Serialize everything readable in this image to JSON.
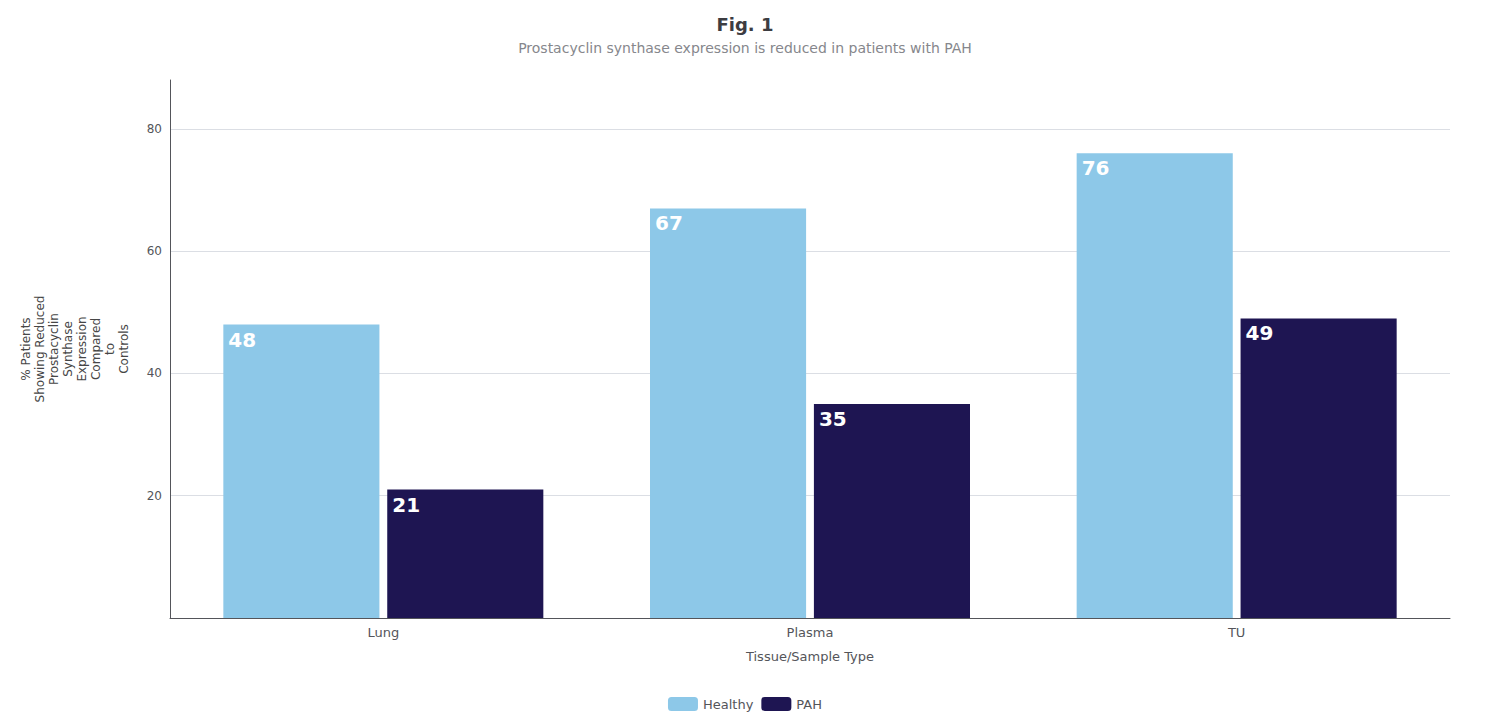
{
  "chart_data": {
    "type": "bar",
    "title": "Fig. 1",
    "subtitle": "Prostacyclin synthase expression is reduced in patients with PAH",
    "ylabel": "% Patients\nShowing Reduced\nProstacyclin\nSynthase\nExpression\nCompared\nto\nControls",
    "xlabel": "Tissue/Sample Type",
    "categories": [
      "Lung",
      "Plasma",
      "TU"
    ],
    "series": [
      {
        "name": "Healthy",
        "color": "#8DC8E8",
        "values": [
          48,
          67,
          76
        ]
      },
      {
        "name": "PAH",
        "color": "#1E1552",
        "values": [
          21,
          35,
          49
        ]
      }
    ],
    "ylim": [
      0,
      88
    ],
    "yticks": [
      20,
      40,
      60,
      80
    ],
    "grid": true,
    "legend": "bottom",
    "data_labels": true
  }
}
